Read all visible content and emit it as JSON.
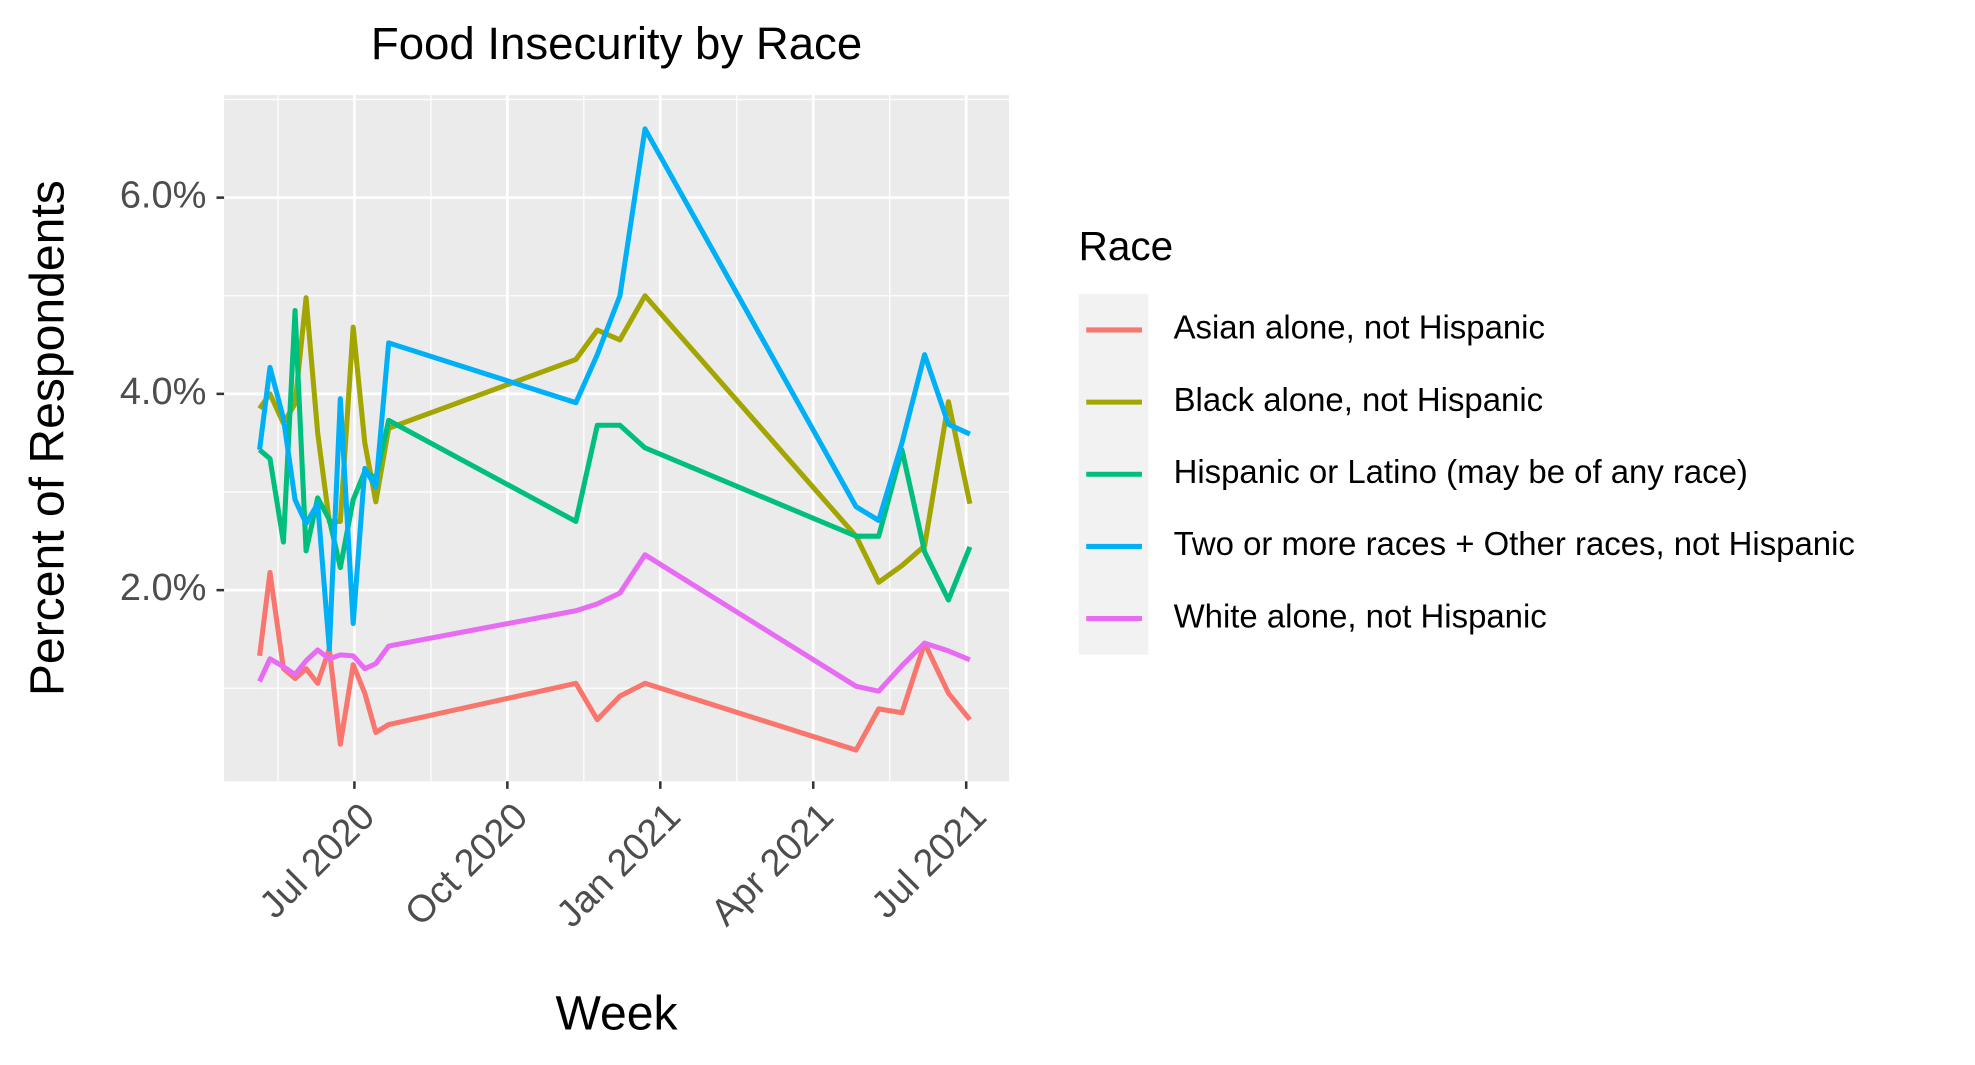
{
  "chart_data": {
    "type": "line",
    "title": "Food Insecurity by Race",
    "x_label": "Week",
    "y_label": "Percent of Respondents",
    "legend_title": "Race",
    "legend": "right",
    "grid": true,
    "x": [
      2020.345,
      2020.362,
      2020.384,
      2020.403,
      2020.421,
      2020.44,
      2020.459,
      2020.477,
      2020.498,
      2020.517,
      2020.535,
      2020.556,
      2020.862,
      2020.897,
      2020.934,
      2020.975,
      2021.32,
      2021.357,
      2021.395,
      2021.432,
      2021.471,
      2021.506
    ],
    "xlim": [
      2020.287,
      2021.57
    ],
    "xticks": [
      {
        "value": 2020.5,
        "label": "Jul 2020"
      },
      {
        "value": 2020.75,
        "label": "Oct 2020"
      },
      {
        "value": 2021.0,
        "label": "Jan 2021"
      },
      {
        "value": 2021.25,
        "label": "Apr 2021"
      },
      {
        "value": 2021.5,
        "label": "Jul 2021"
      }
    ],
    "xminor": [
      2020.375,
      2020.625,
      2020.875,
      2021.125,
      2021.375
    ],
    "ylim": [
      0.052,
      7.045
    ],
    "yticks": [
      {
        "value": 2,
        "label": "2.0%"
      },
      {
        "value": 4,
        "label": "4.0%"
      },
      {
        "value": 6,
        "label": "6.0%"
      }
    ],
    "yminor": [
      1,
      3,
      5,
      7
    ],
    "series": [
      {
        "name": "Asian alone, not Hispanic",
        "color": "#F8766D",
        "values": [
          1.33,
          2.18,
          1.2,
          1.1,
          1.2,
          1.05,
          1.4,
          0.43,
          1.24,
          0.95,
          0.55,
          0.63,
          1.05,
          0.68,
          0.92,
          1.05,
          0.37,
          0.79,
          0.75,
          1.46,
          0.95,
          0.68
        ]
      },
      {
        "name": "Black alone, not Hispanic",
        "color": "#A3A500",
        "values": [
          3.85,
          4.0,
          3.7,
          3.9,
          4.98,
          3.6,
          2.7,
          2.7,
          4.68,
          3.5,
          2.9,
          3.65,
          4.35,
          4.65,
          4.55,
          5.0,
          2.55,
          2.08,
          2.25,
          2.45,
          3.92,
          2.88
        ]
      },
      {
        "name": "Hispanic or Latino (may be of any race)",
        "color": "#00BF7D",
        "values": [
          3.43,
          3.34,
          2.49,
          4.85,
          2.4,
          2.94,
          2.72,
          2.23,
          2.92,
          3.21,
          3.14,
          3.73,
          2.7,
          3.68,
          3.68,
          3.45,
          2.55,
          2.55,
          3.43,
          2.39,
          1.9,
          2.44
        ]
      },
      {
        "name": "Two or more races + Other races, not Hispanic",
        "color": "#00B0F6",
        "values": [
          3.43,
          4.27,
          3.75,
          2.92,
          2.68,
          2.88,
          1.4,
          3.95,
          1.66,
          3.24,
          3.05,
          4.52,
          3.91,
          4.4,
          5.0,
          6.7,
          2.85,
          2.71,
          3.5,
          4.4,
          3.69,
          3.59
        ]
      },
      {
        "name": "White alone, not Hispanic",
        "color": "#E76BF3",
        "values": [
          1.07,
          1.3,
          1.22,
          1.14,
          1.28,
          1.39,
          1.3,
          1.34,
          1.33,
          1.2,
          1.25,
          1.43,
          1.79,
          1.86,
          1.97,
          2.36,
          1.02,
          0.97,
          1.23,
          1.46,
          1.38,
          1.29
        ]
      }
    ]
  }
}
